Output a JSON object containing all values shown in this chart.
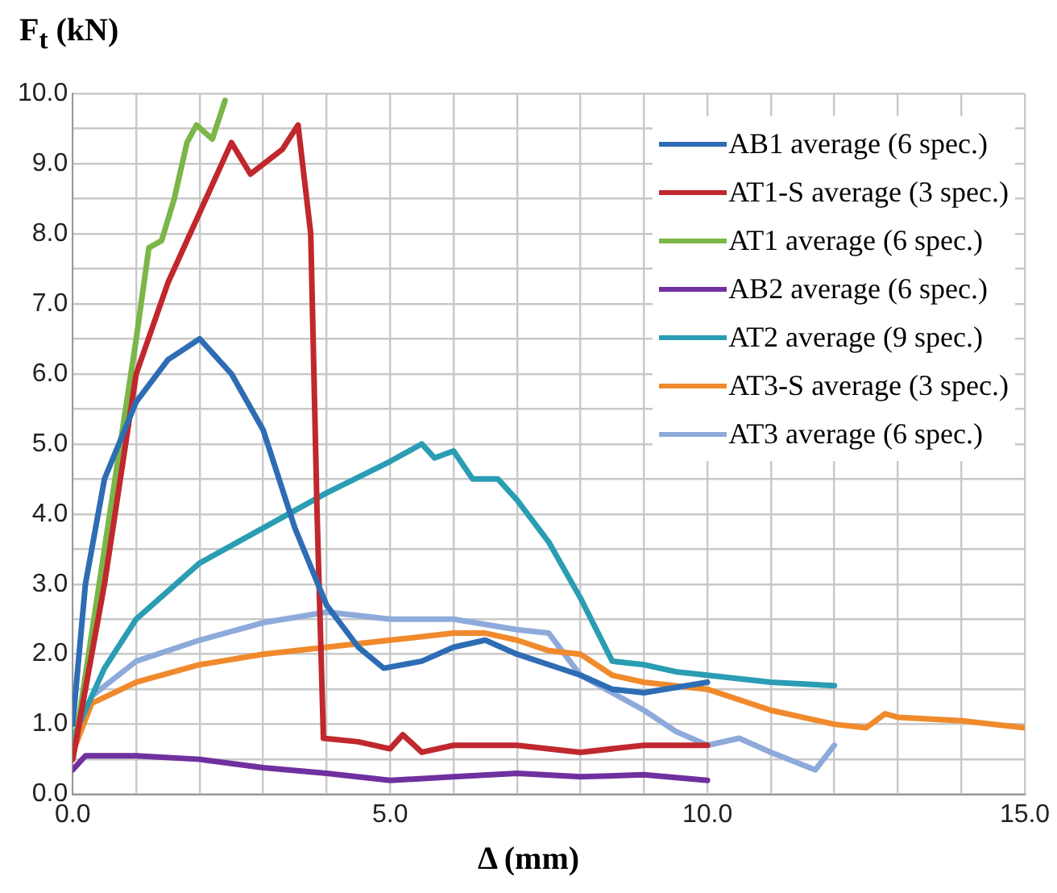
{
  "chart_data": {
    "type": "line",
    "xlabel": "Δ (mm)",
    "ylabel": "F$_{t}$ (kN)",
    "xlim": [
      0,
      15
    ],
    "ylim": [
      0,
      10
    ],
    "xticks": [
      {
        "value": 0,
        "label": "0.0"
      },
      {
        "value": 1,
        "label": null
      },
      {
        "value": 2,
        "label": null
      },
      {
        "value": 3,
        "label": null
      },
      {
        "value": 4,
        "label": null
      },
      {
        "value": 5,
        "label": "5.0"
      },
      {
        "value": 6,
        "label": null
      },
      {
        "value": 7,
        "label": null
      },
      {
        "value": 8,
        "label": null
      },
      {
        "value": 9,
        "label": null
      },
      {
        "value": 10,
        "label": "10.0"
      },
      {
        "value": 11,
        "label": null
      },
      {
        "value": 12,
        "label": null
      },
      {
        "value": 13,
        "label": null
      },
      {
        "value": 14,
        "label": null
      },
      {
        "value": 15,
        "label": "15.0"
      }
    ],
    "yticks": [
      {
        "value": 0,
        "label": "0.0"
      },
      {
        "value": 0.5,
        "label": null
      },
      {
        "value": 1,
        "label": "1.0"
      },
      {
        "value": 1.5,
        "label": null
      },
      {
        "value": 2,
        "label": "2.0"
      },
      {
        "value": 2.5,
        "label": null
      },
      {
        "value": 3,
        "label": "3.0"
      },
      {
        "value": 3.5,
        "label": null
      },
      {
        "value": 4,
        "label": "4.0"
      },
      {
        "value": 4.5,
        "label": null
      },
      {
        "value": 5,
        "label": "5.0"
      },
      {
        "value": 5.5,
        "label": null
      },
      {
        "value": 6,
        "label": "6.0"
      },
      {
        "value": 6.5,
        "label": null
      },
      {
        "value": 7,
        "label": "7.0"
      },
      {
        "value": 7.5,
        "label": null
      },
      {
        "value": 8,
        "label": "8.0"
      },
      {
        "value": 8.5,
        "label": null
      },
      {
        "value": 9,
        "label": "9.0"
      },
      {
        "value": 9.5,
        "label": null
      },
      {
        "value": 10,
        "label": "10.0"
      }
    ],
    "grid": true,
    "legend": "top right",
    "marker": "none",
    "line_style": "solid",
    "series": [
      {
        "name": "AB1 average (6 spec.)",
        "color": "#2e6db4",
        "x": [
          0,
          0.2,
          0.5,
          1,
          1.5,
          2,
          2.5,
          3,
          3.5,
          4,
          4.5,
          4.9,
          5.5,
          6,
          6.5,
          7,
          8,
          8.5,
          9,
          10
        ],
        "values": [
          1.0,
          3.0,
          4.5,
          5.6,
          6.2,
          6.5,
          6.0,
          5.2,
          3.8,
          2.7,
          2.1,
          1.8,
          1.9,
          2.1,
          2.2,
          2.0,
          1.7,
          1.5,
          1.45,
          1.6
        ]
      },
      {
        "name": "AT1-S average (3 spec.)",
        "color": "#c0282d",
        "x": [
          0,
          0.5,
          1,
          1.5,
          2,
          2.5,
          2.8,
          3.3,
          3.55,
          3.75,
          3.85,
          3.95,
          4.5,
          5,
          5.2,
          5.5,
          6,
          7,
          8,
          9,
          10
        ],
        "values": [
          0.5,
          3.0,
          6.0,
          7.3,
          8.3,
          9.3,
          8.85,
          9.2,
          9.55,
          8.0,
          4.0,
          0.8,
          0.75,
          0.65,
          0.85,
          0.6,
          0.7,
          0.7,
          0.6,
          0.7,
          0.7
        ]
      },
      {
        "name": "AT1 average (6 spec.)",
        "color": "#7ab648",
        "x": [
          0,
          0.5,
          1,
          1.2,
          1.4,
          1.6,
          1.8,
          1.95,
          2.2,
          2.4
        ],
        "values": [
          0.5,
          3.5,
          6.5,
          7.8,
          7.9,
          8.5,
          9.3,
          9.55,
          9.35,
          9.9
        ]
      },
      {
        "name": "AB2 average (6 spec.)",
        "color": "#7030a0",
        "x": [
          0,
          0.2,
          1,
          2,
          3,
          4,
          5,
          6,
          7,
          8,
          9,
          10
        ],
        "values": [
          0.35,
          0.55,
          0.55,
          0.5,
          0.38,
          0.3,
          0.2,
          0.25,
          0.3,
          0.25,
          0.28,
          0.2
        ]
      },
      {
        "name": "AT2 average (9 spec.)",
        "color": "#2a9db3",
        "x": [
          0,
          0.5,
          1,
          2,
          3,
          4,
          5,
          5.5,
          5.7,
          6,
          6.3,
          6.7,
          7,
          7.5,
          8,
          8.5,
          9,
          9.5,
          10,
          11,
          12
        ],
        "values": [
          0.8,
          1.8,
          2.5,
          3.3,
          3.8,
          4.3,
          4.75,
          5.0,
          4.8,
          4.9,
          4.5,
          4.5,
          4.2,
          3.6,
          2.8,
          1.9,
          1.85,
          1.75,
          1.7,
          1.6,
          1.55
        ]
      },
      {
        "name": "AT3-S average (3 spec.)",
        "color": "#f08a2c",
        "x": [
          0,
          0.3,
          1,
          2,
          3,
          4,
          5,
          6,
          6.5,
          7,
          7.5,
          8,
          8.5,
          9,
          10,
          11,
          12,
          12.5,
          12.8,
          13,
          14,
          15
        ],
        "values": [
          0.6,
          1.3,
          1.6,
          1.85,
          2.0,
          2.1,
          2.2,
          2.3,
          2.3,
          2.2,
          2.05,
          2.0,
          1.7,
          1.6,
          1.5,
          1.2,
          1.0,
          0.95,
          1.15,
          1.1,
          1.05,
          0.95
        ]
      },
      {
        "name": "AT3 average (6 spec.)",
        "color": "#8eaadb",
        "x": [
          0.3,
          1,
          2,
          3,
          4,
          4.5,
          5,
          6,
          7,
          7.5,
          8,
          9,
          9.5,
          10,
          10.5,
          11,
          11.7,
          12
        ],
        "values": [
          1.4,
          1.9,
          2.2,
          2.45,
          2.6,
          2.55,
          2.5,
          2.5,
          2.35,
          2.3,
          1.7,
          1.2,
          0.9,
          0.7,
          0.8,
          0.6,
          0.35,
          0.7
        ]
      }
    ]
  }
}
